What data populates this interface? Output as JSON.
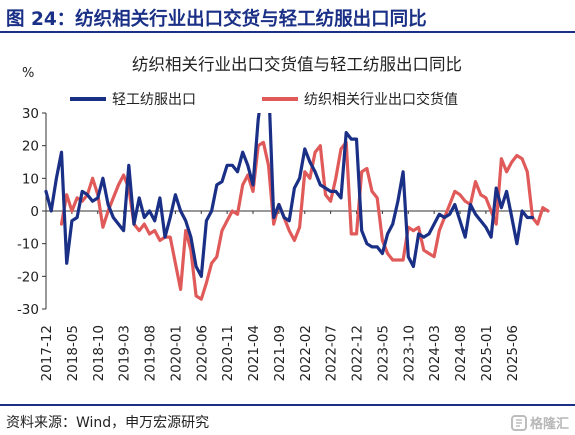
{
  "figure": {
    "title": "图 24：纺织相关行业出口交货与轻工纺服出口同比",
    "source": "资料来源：Wind，申万宏源研究",
    "watermark": "格隆汇"
  },
  "chart_data": {
    "type": "line",
    "title": "纺织相关行业出口交货值与轻工纺服出口同比",
    "ylabel": "%",
    "ylim": [
      -30,
      30
    ],
    "yticks": [
      -30,
      -20,
      -10,
      0,
      10,
      20,
      30
    ],
    "grid": false,
    "legend_position": "top",
    "x_start": "2017-12",
    "tick_labels": [
      "2017-12",
      "2018-05",
      "2018-10",
      "2019-03",
      "2019-08",
      "2020-01",
      "2020-06",
      "2020-11",
      "2021-04",
      "2021-09",
      "2022-02",
      "2022-07",
      "2022-12",
      "2023-05",
      "2023-10",
      "2024-03",
      "2024-08",
      "2025-01",
      "2025-06"
    ],
    "series": [
      {
        "name": "轻工纺服出口",
        "color": "#1a2f86",
        "values": [
          6,
          0,
          10,
          18,
          -16,
          -3,
          -2,
          6,
          5,
          3,
          4,
          10,
          2,
          -2,
          -4,
          -6,
          14,
          -4,
          4,
          -2,
          0,
          -3,
          4,
          -8,
          -2,
          5,
          0,
          -3,
          -8,
          -17,
          -20,
          -3,
          0,
          8,
          9,
          14,
          14,
          12,
          18,
          14,
          8,
          28,
          40,
          40,
          -2,
          2,
          -2,
          -3,
          7,
          10,
          19,
          15,
          12,
          8,
          7,
          6,
          6,
          4,
          24,
          22,
          22,
          -6,
          -10,
          -11,
          -11,
          -13,
          -7,
          -4,
          3,
          12,
          -14,
          -17,
          -7,
          -8,
          -7,
          -4,
          -1,
          -2,
          -1,
          2,
          -3,
          -8,
          2,
          -1,
          -3,
          -5,
          -8,
          7,
          1,
          6,
          -2,
          -10,
          0,
          -2,
          -2
        ]
      },
      {
        "name": "纺织相关行业出口交货值",
        "color": "#e05a5a",
        "values": [
          null,
          null,
          null,
          -4,
          5,
          0,
          4,
          3,
          5,
          10,
          5,
          -5,
          0,
          4,
          8,
          11,
          7,
          -4,
          -6,
          -4,
          -7,
          -6,
          -9,
          -8,
          -8,
          -16,
          -24,
          -6,
          -12,
          -26,
          -27,
          -22,
          -16,
          -14,
          -6,
          -3,
          0,
          -1,
          8,
          11,
          6,
          20,
          21,
          14,
          -4,
          2,
          -2,
          -6,
          -9,
          -5,
          12,
          10,
          18,
          20,
          5,
          3,
          10,
          19,
          21,
          -7,
          -7,
          12,
          13,
          6,
          4,
          -9,
          -13,
          -15,
          -15,
          -15,
          -5,
          -6,
          -5,
          -12,
          -13,
          -14,
          -6,
          -2,
          2,
          6,
          5,
          3,
          2,
          9,
          5,
          4,
          0,
          -4,
          16,
          12,
          15,
          17,
          16,
          12,
          -2,
          -4,
          1,
          0
        ]
      }
    ]
  }
}
